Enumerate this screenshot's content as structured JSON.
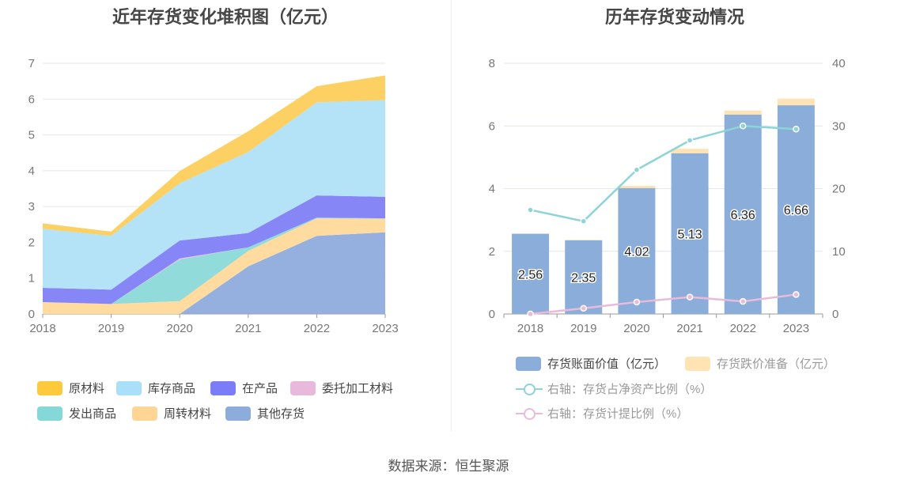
{
  "left_chart": {
    "title": "近年存货变化堆积图（亿元）",
    "chart_data": {
      "type": "area",
      "stacked": true,
      "x": [
        "2018",
        "2019",
        "2020",
        "2021",
        "2022",
        "2023"
      ],
      "ylim": [
        0,
        7
      ],
      "yticks": [
        "0",
        "1",
        "2",
        "3",
        "4",
        "5",
        "6",
        "7"
      ],
      "grid": true,
      "legend_position": "bottom",
      "series": [
        {
          "name": "其他存货",
          "color": "#8fabdd",
          "values": [
            0.0,
            0.0,
            0.0,
            1.33,
            2.18,
            2.28
          ]
        },
        {
          "name": "周转材料",
          "color": "#ffd99a",
          "values": [
            0.33,
            0.28,
            0.36,
            0.43,
            0.49,
            0.38
          ]
        },
        {
          "name": "发出商品",
          "color": "#8cd9d9",
          "values": [
            0.0,
            0.0,
            1.16,
            0.1,
            0.02,
            0.01
          ]
        },
        {
          "name": "委托加工材料",
          "color": "#e8b8da",
          "values": [
            0.0,
            0.0,
            0.03,
            0.0,
            0.0,
            0.0
          ]
        },
        {
          "name": "在产品",
          "color": "#8080f5",
          "values": [
            0.4,
            0.4,
            0.5,
            0.4,
            0.62,
            0.6
          ]
        },
        {
          "name": "库存商品",
          "color": "#b0e0f7",
          "values": [
            1.65,
            1.5,
            1.6,
            2.26,
            2.6,
            2.7
          ]
        },
        {
          "name": "原材料",
          "color": "#fcce5a",
          "values": [
            0.15,
            0.12,
            0.34,
            0.58,
            0.45,
            0.69
          ]
        }
      ]
    },
    "legend": [
      {
        "label": "原材料",
        "color": "#ffc93c"
      },
      {
        "label": "库存商品",
        "color": "#a9dff9"
      },
      {
        "label": "在产品",
        "color": "#7b7cf7"
      },
      {
        "label": "委托加工材料",
        "color": "#e9b9db"
      },
      {
        "label": "发出商品",
        "color": "#85d8d8"
      },
      {
        "label": "周转材料",
        "color": "#ffd596"
      },
      {
        "label": "其他存货",
        "color": "#8caddc"
      }
    ]
  },
  "right_chart": {
    "title": "历年存货变动情况",
    "chart_data": {
      "type": "bar",
      "stacked": true,
      "categories": [
        "2018",
        "2019",
        "2020",
        "2021",
        "2022",
        "2023"
      ],
      "ylim": [
        0,
        8
      ],
      "yticks": [
        "0",
        "2",
        "4",
        "6",
        "8"
      ],
      "y2lim": [
        0,
        40
      ],
      "y2ticks": [
        "0",
        "10",
        "20",
        "30",
        "40"
      ],
      "grid": true,
      "legend_position": "bottom",
      "bar_series": [
        {
          "name": "存货账面价值（亿元）",
          "color": "#8badd9",
          "values": [
            2.56,
            2.35,
            4.02,
            5.13,
            6.36,
            6.66
          ],
          "labels": [
            "2.56",
            "2.35",
            "4.02",
            "5.13",
            "6.36",
            "6.66"
          ]
        },
        {
          "name": "存货跌价准备（亿元）",
          "color": "#ffe3b3",
          "values": [
            0.0,
            0.02,
            0.07,
            0.14,
            0.13,
            0.21
          ]
        }
      ],
      "line_series": [
        {
          "name": "右轴：存货占净资产比例（%）",
          "color": "#8dd4d6",
          "axis": "right",
          "values": [
            16.6,
            14.8,
            23.0,
            27.7,
            30.0,
            29.5
          ]
        },
        {
          "name": "右轴：存货计提比例（%）",
          "color": "#e9bbdb",
          "axis": "right",
          "values": [
            0.0,
            0.9,
            1.9,
            2.7,
            2.0,
            3.1
          ]
        }
      ]
    },
    "legend": [
      {
        "label": "存货账面价值（亿元）",
        "color": "#8badd9",
        "kind": "bar"
      },
      {
        "label": "存货跌价准备（亿元）",
        "color": "#ffe3b3",
        "kind": "bar"
      },
      {
        "label": "右轴：存货占净资产比例（%）",
        "color": "#8dd4d6",
        "kind": "line"
      },
      {
        "label": "右轴：存货计提比例（%）",
        "color": "#e9bbdb",
        "kind": "line"
      }
    ]
  },
  "footer": {
    "source": "数据来源：恒生聚源"
  }
}
